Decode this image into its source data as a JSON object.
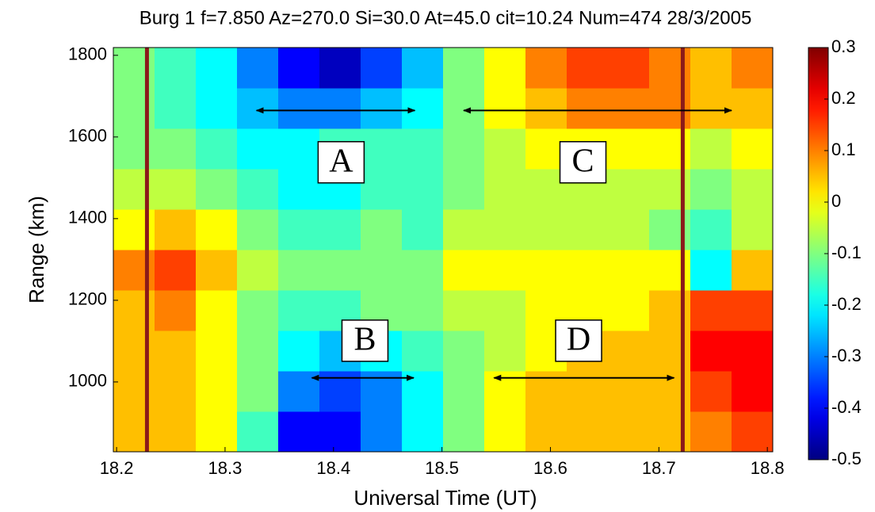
{
  "chart_data": {
    "type": "heatmap",
    "title": "Burg 1 f=7.850 Az=270.0 Si=30.0 At=45.0 cit=10.24 Num=474  28/3/2005",
    "x_label": "Universal Time (UT)",
    "y_label": "Range (km)",
    "xlim": [
      18.197,
      18.805
    ],
    "ylim": [
      829,
      1819
    ],
    "xticks": [
      18.2,
      18.3,
      18.4,
      18.5,
      18.6,
      18.7,
      18.8
    ],
    "yticks": [
      1000,
      1200,
      1400,
      1600,
      1800
    ],
    "colormap": "jet",
    "clim": [
      -0.5,
      0.3
    ],
    "cticks": [
      0.3,
      0.2,
      0.1,
      0,
      -0.1,
      -0.2,
      -0.3,
      -0.4,
      -0.5
    ],
    "x_edges": [
      18.197,
      18.235,
      18.273,
      18.311,
      18.349,
      18.387,
      18.425,
      18.463,
      18.501,
      18.539,
      18.577,
      18.615,
      18.653,
      18.691,
      18.729,
      18.767,
      18.805
    ],
    "y_edges": [
      829,
      928,
      1027,
      1126,
      1225,
      1324,
      1423,
      1522,
      1621,
      1720,
      1819
    ],
    "z": [
      [
        0.05,
        0.05,
        0.0,
        -0.15,
        -0.4,
        -0.4,
        -0.3,
        -0.2,
        -0.1,
        0.0,
        0.05,
        0.05,
        0.05,
        0.05,
        0.1,
        0.15
      ],
      [
        0.05,
        0.05,
        0.0,
        -0.1,
        -0.3,
        -0.35,
        -0.3,
        -0.2,
        -0.1,
        0.0,
        0.05,
        0.05,
        0.05,
        0.05,
        0.15,
        0.2
      ],
      [
        0.05,
        0.05,
        0.0,
        -0.1,
        -0.2,
        -0.25,
        -0.2,
        -0.15,
        -0.1,
        -0.05,
        0.0,
        0.05,
        0.05,
        0.05,
        0.2,
        0.2
      ],
      [
        0.05,
        0.1,
        0.0,
        -0.1,
        -0.15,
        -0.15,
        -0.1,
        -0.1,
        -0.05,
        -0.05,
        0.0,
        0.0,
        0.0,
        0.05,
        0.15,
        0.15
      ],
      [
        0.1,
        0.15,
        0.05,
        -0.05,
        -0.1,
        -0.1,
        -0.1,
        -0.1,
        0.0,
        0.0,
        0.0,
        0.0,
        0.0,
        0.0,
        -0.2,
        0.05
      ],
      [
        0.0,
        0.05,
        0.0,
        -0.1,
        -0.15,
        -0.15,
        -0.1,
        -0.15,
        -0.05,
        -0.05,
        -0.05,
        -0.05,
        -0.05,
        -0.1,
        -0.15,
        -0.05
      ],
      [
        -0.05,
        -0.05,
        -0.1,
        -0.15,
        -0.2,
        -0.2,
        -0.15,
        -0.15,
        -0.1,
        -0.05,
        -0.05,
        -0.05,
        -0.05,
        -0.05,
        -0.1,
        -0.05
      ],
      [
        -0.1,
        -0.1,
        -0.15,
        -0.2,
        -0.2,
        -0.15,
        -0.15,
        -0.15,
        -0.1,
        -0.05,
        0.0,
        0.0,
        0.0,
        0.0,
        -0.05,
        0.0
      ],
      [
        -0.1,
        -0.15,
        -0.2,
        -0.25,
        -0.3,
        -0.3,
        -0.25,
        -0.2,
        -0.1,
        0.0,
        0.05,
        0.1,
        0.1,
        0.1,
        0.05,
        0.05
      ],
      [
        -0.1,
        -0.15,
        -0.2,
        -0.3,
        -0.4,
        -0.45,
        -0.35,
        -0.25,
        -0.1,
        0.0,
        0.1,
        0.15,
        0.15,
        0.1,
        0.05,
        0.1
      ]
    ],
    "vlines": {
      "x": [
        18.228,
        18.722
      ],
      "color": "#8b1a1a"
    },
    "arrows": [
      {
        "x": [
          18.329,
          18.475
        ],
        "y": 1665
      },
      {
        "x": [
          18.52,
          18.767
        ],
        "y": 1665
      },
      {
        "x": [
          18.38,
          18.474
        ],
        "y": 1010
      },
      {
        "x": [
          18.548,
          18.714
        ],
        "y": 1010
      }
    ],
    "annotations": [
      {
        "text": "A",
        "x": 18.407,
        "y": 1538
      },
      {
        "text": "C",
        "x": 18.63,
        "y": 1538
      },
      {
        "text": "B",
        "x": 18.429,
        "y": 1101
      },
      {
        "text": "D",
        "x": 18.626,
        "y": 1101
      }
    ]
  }
}
